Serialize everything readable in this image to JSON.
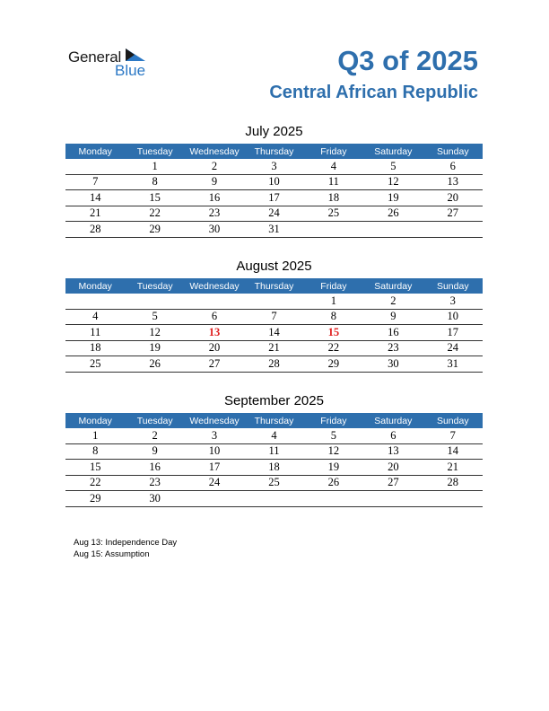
{
  "logo": {
    "word1": "General",
    "word2": "Blue"
  },
  "header": {
    "title": "Q3 of 2025",
    "subtitle": "Central African Republic"
  },
  "weekdays": [
    "Monday",
    "Tuesday",
    "Wednesday",
    "Thursday",
    "Friday",
    "Saturday",
    "Sunday"
  ],
  "months": [
    {
      "name": "July 2025",
      "weeks": [
        [
          "",
          "1",
          "2",
          "3",
          "4",
          "5",
          "6"
        ],
        [
          "7",
          "8",
          "9",
          "10",
          "11",
          "12",
          "13"
        ],
        [
          "14",
          "15",
          "16",
          "17",
          "18",
          "19",
          "20"
        ],
        [
          "21",
          "22",
          "23",
          "24",
          "25",
          "26",
          "27"
        ],
        [
          "28",
          "29",
          "30",
          "31",
          "",
          "",
          ""
        ]
      ],
      "holidays": []
    },
    {
      "name": "August 2025",
      "weeks": [
        [
          "",
          "",
          "",
          "",
          "1",
          "2",
          "3"
        ],
        [
          "4",
          "5",
          "6",
          "7",
          "8",
          "9",
          "10"
        ],
        [
          "11",
          "12",
          "13",
          "14",
          "15",
          "16",
          "17"
        ],
        [
          "18",
          "19",
          "20",
          "21",
          "22",
          "23",
          "24"
        ],
        [
          "25",
          "26",
          "27",
          "28",
          "29",
          "30",
          "31"
        ]
      ],
      "holidays": [
        "13",
        "15"
      ]
    },
    {
      "name": "September 2025",
      "weeks": [
        [
          "1",
          "2",
          "3",
          "4",
          "5",
          "6",
          "7"
        ],
        [
          "8",
          "9",
          "10",
          "11",
          "12",
          "13",
          "14"
        ],
        [
          "15",
          "16",
          "17",
          "18",
          "19",
          "20",
          "21"
        ],
        [
          "22",
          "23",
          "24",
          "25",
          "26",
          "27",
          "28"
        ],
        [
          "29",
          "30",
          "",
          "",
          "",
          "",
          ""
        ]
      ],
      "holidays": []
    }
  ],
  "notes": [
    "Aug 13: Independence Day",
    "Aug 15: Assumption"
  ],
  "colors": {
    "accent": "#2e6fad",
    "holiday": "#e02020",
    "logo_blue": "#2b78c5"
  }
}
